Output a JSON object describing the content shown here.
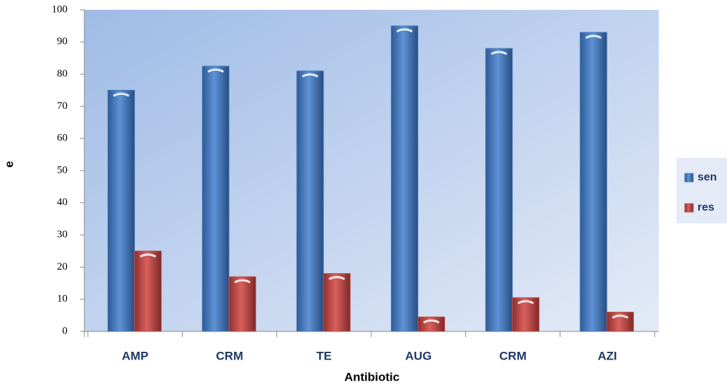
{
  "chart_data": {
    "type": "bar",
    "x_label": "Antibiotic",
    "y_label": "e",
    "categories": [
      "AMP",
      "CRM",
      "TE",
      "AUG",
      "CRM",
      "AZI"
    ],
    "series": [
      {
        "name": "sen",
        "color": "#4a7dbf",
        "values": [
          75,
          82.5,
          81,
          95,
          88,
          93
        ]
      },
      {
        "name": "res",
        "color": "#c0504d",
        "values": [
          25,
          17,
          18,
          4.5,
          10.5,
          6
        ]
      }
    ],
    "ylim": [
      0,
      100
    ],
    "yticks": [
      0,
      10,
      20,
      30,
      40,
      50,
      60,
      70,
      80,
      90,
      100
    ],
    "legend": "right"
  }
}
